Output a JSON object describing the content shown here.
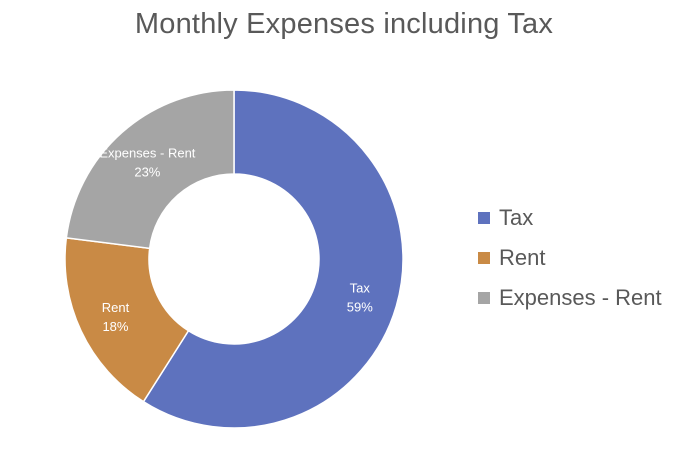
{
  "chart_data": {
    "type": "pie",
    "subtype": "doughnut",
    "title": "Monthly Expenses including Tax",
    "legend_position": "right",
    "slices": [
      {
        "label": "Tax",
        "percent": 59,
        "percent_label": "59%",
        "color": "#5e72be"
      },
      {
        "label": "Rent",
        "percent": 18,
        "percent_label": "18%",
        "color": "#c98a45"
      },
      {
        "label": "Expenses - Rent",
        "percent": 23,
        "percent_label": "23%",
        "color": "#a5a5a5"
      }
    ]
  }
}
